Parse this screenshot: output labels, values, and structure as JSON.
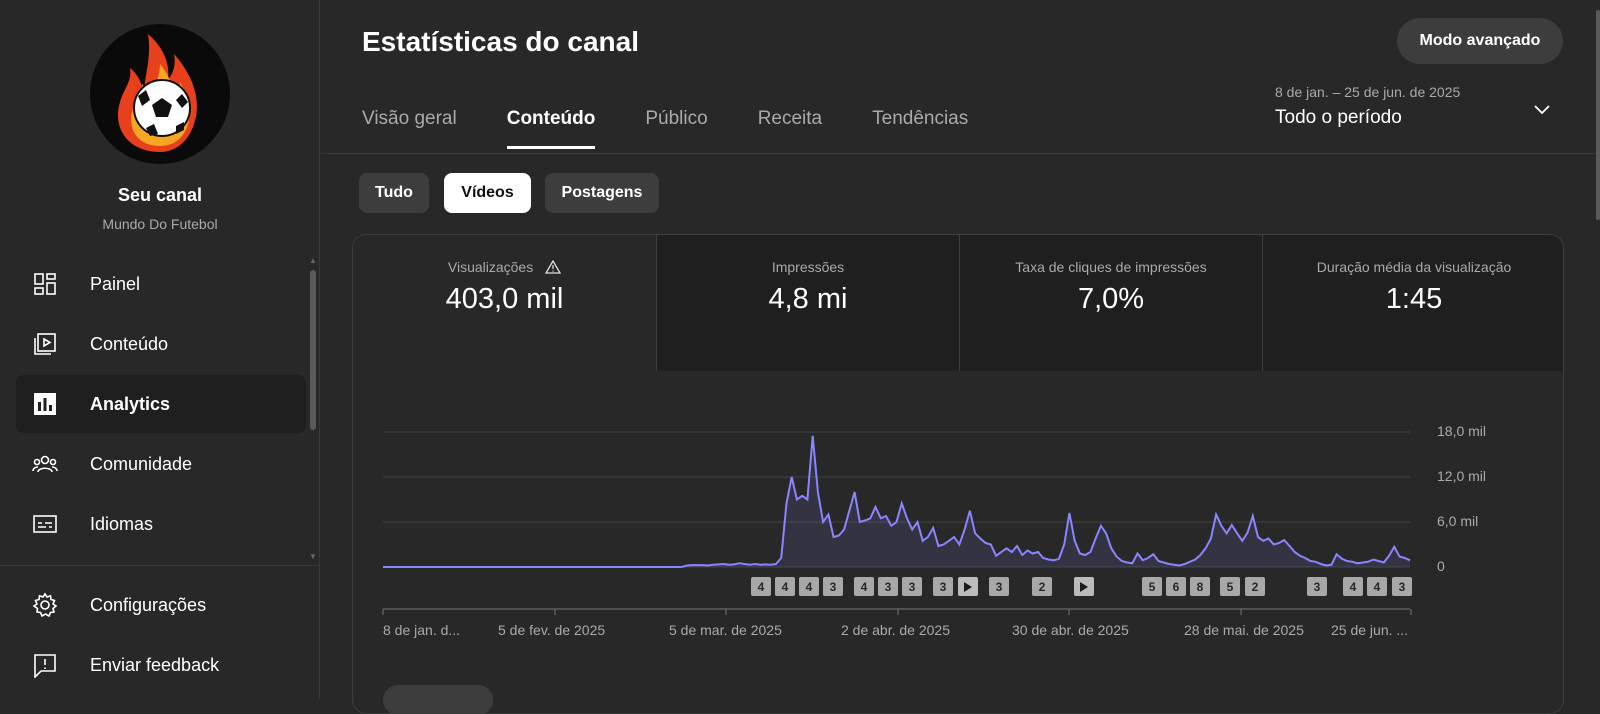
{
  "channel": {
    "name": "Seu canal",
    "handle": "Mundo Do Futebol"
  },
  "sidebar": {
    "items": [
      {
        "label": "Painel",
        "icon": "dashboard-icon"
      },
      {
        "label": "Conteúdo",
        "icon": "content-icon"
      },
      {
        "label": "Analytics",
        "icon": "analytics-icon",
        "active": true
      },
      {
        "label": "Comunidade",
        "icon": "community-icon"
      },
      {
        "label": "Idiomas",
        "icon": "subtitles-icon"
      }
    ],
    "bottom_items": [
      {
        "label": "Configurações",
        "icon": "gear-icon"
      },
      {
        "label": "Enviar feedback",
        "icon": "feedback-icon"
      }
    ]
  },
  "header": {
    "title": "Estatísticas do canal",
    "advanced_label": "Modo avançado",
    "tabs": [
      "Visão geral",
      "Conteúdo",
      "Público",
      "Receita",
      "Tendências"
    ],
    "active_tab": "Conteúdo",
    "date_range": "8 de jan. – 25 de jun. de 2025",
    "period": "Todo o período"
  },
  "chips": [
    "Tudo",
    "Vídeos",
    "Postagens"
  ],
  "active_chip": "Vídeos",
  "metrics": [
    {
      "label": "Visualizações",
      "value": "403,0 mil",
      "warning": true
    },
    {
      "label": "Impressões",
      "value": "4,8 mi"
    },
    {
      "label": "Taxa de cliques de impressões",
      "value": "7,0%"
    },
    {
      "label": "Duração média da visualização",
      "value": "1:45"
    }
  ],
  "colors": {
    "accent_line": "#8a85ff",
    "background": "#282828",
    "panel": "#1f1f1f"
  },
  "chart_data": {
    "type": "line",
    "x_tick_labels": [
      "8 de jan. d...",
      "5 de fev. de 2025",
      "5 de mar. de 2025",
      "2 de abr. de 2025",
      "30 de abr. de 2025",
      "28 de mai. de 2025",
      "25 de jun. ..."
    ],
    "y_tick_labels": [
      "0",
      "6,0 mil",
      "12,0 mil",
      "18,0 mil"
    ],
    "ylim": [
      0,
      18000
    ],
    "grid": true,
    "series": [
      {
        "values": [
          0,
          0,
          0,
          0,
          0,
          0,
          0,
          0,
          0,
          0,
          0,
          0,
          0,
          0,
          0,
          0,
          0,
          0,
          0,
          0,
          0,
          0,
          0,
          0,
          0,
          0,
          0,
          0,
          0,
          0,
          0,
          0,
          0,
          0,
          0,
          0,
          0,
          0,
          0,
          0,
          0,
          0,
          0,
          0,
          0,
          0,
          0,
          0,
          0,
          0,
          0,
          0,
          0,
          0,
          0,
          0,
          0,
          0,
          200,
          250,
          250,
          250,
          200,
          300,
          350,
          400,
          300,
          350,
          500,
          400,
          300,
          400,
          300,
          350,
          300,
          400,
          1200,
          8500,
          12000,
          9000,
          9500,
          9000,
          17500,
          10000,
          6000,
          7000,
          4000,
          4200,
          5000,
          7500,
          10000,
          6000,
          6200,
          6500,
          8000,
          6500,
          6800,
          5500,
          6000,
          8500,
          6500,
          5000,
          6000,
          3500,
          4000,
          5200,
          2800,
          3000,
          3500,
          4000,
          3000,
          5000,
          7500,
          4500,
          3800,
          3200,
          3000,
          1500,
          2000,
          2500,
          2000,
          2800,
          1600,
          2200,
          1800,
          2000,
          1200,
          1000,
          900,
          1100,
          3000,
          7200,
          3500,
          1800,
          1600,
          2000,
          3800,
          5500,
          4500,
          2500,
          1400,
          800,
          600,
          500,
          1800,
          900,
          1200,
          1700,
          800,
          600,
          400,
          300,
          200,
          400,
          700,
          1000,
          1600,
          2500,
          3800,
          7000,
          5500,
          4500,
          5600,
          4500,
          3500,
          4600,
          6800,
          4000,
          3500,
          3800,
          3000,
          3200,
          3600,
          2800,
          2000,
          1500,
          1200,
          800,
          700,
          400,
          200,
          300,
          1700,
          1100,
          800,
          700,
          500,
          600,
          700,
          1000,
          800,
          600,
          1500,
          2700,
          1400,
          1200,
          900
        ]
      }
    ],
    "markers": [
      "4",
      "4",
      "4",
      "3",
      "4",
      "3",
      "3",
      "3",
      "play",
      "3",
      "2",
      "play",
      "5",
      "6",
      "8",
      "5",
      "2",
      "3",
      "4",
      "4",
      "3"
    ]
  }
}
